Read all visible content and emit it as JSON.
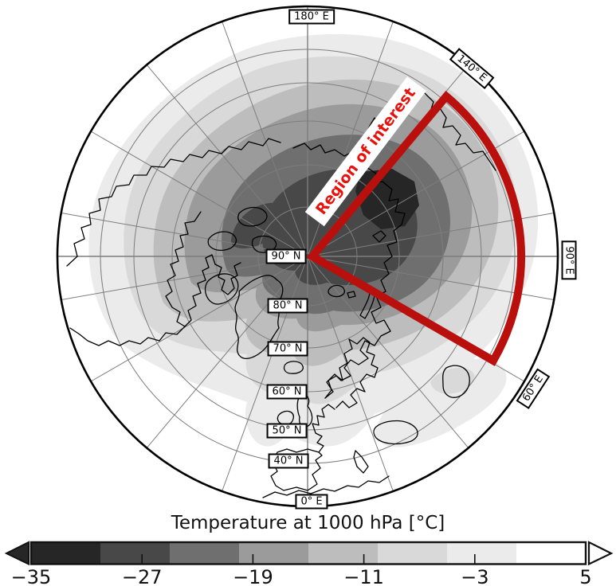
{
  "title": "Temperature at 1000 hPa [°C]",
  "map": {
    "latitude_labels": [
      "90° N",
      "80° N",
      "70° N",
      "60° N",
      "50° N",
      "40° N"
    ],
    "longitude_labels": [
      "180° E",
      "140° E",
      "90° E",
      "60° E",
      "0° E"
    ],
    "graticule_color": "#7d7d7d",
    "coastline_color": "#000000",
    "region_of_interest": {
      "label": "Region of interest",
      "outline_color": "#b9100e",
      "text_color": "#e8120c"
    }
  },
  "chart_data": {
    "type": "heatmap",
    "title": "Temperature at 1000 hPa [°C]",
    "projection": "north-polar-azimuthal",
    "colorbar": {
      "orientation": "horizontal",
      "range": [
        -35,
        5
      ],
      "tick_values": [
        -35,
        -27,
        -19,
        -11,
        -3,
        5
      ],
      "tick_labels": [
        "−35",
        "−27",
        "−19",
        "−11",
        "−3",
        "5"
      ],
      "segment_bounds": [
        -35,
        -30,
        -25,
        -20,
        -15,
        -10,
        -5,
        0,
        5
      ],
      "segment_colors": [
        "#262626",
        "#484848",
        "#6f6f6f",
        "#9b9b9b",
        "#bdbdbd",
        "#d9d9d9",
        "#ebebeb",
        "#ffffff"
      ],
      "under_arrow_color": "#262626",
      "over_arrow_color": "#ffffff"
    },
    "region_of_interest": {
      "label": "Region of interest",
      "lon_from": "60° E",
      "lon_to": "140° E",
      "lat_from": "40° N",
      "lat_to": "90° N"
    }
  }
}
